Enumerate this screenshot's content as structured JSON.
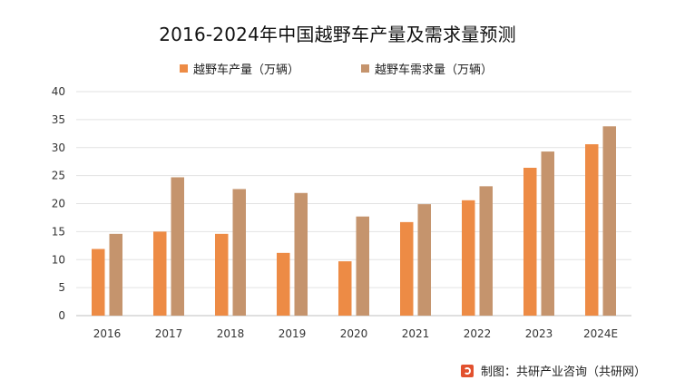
{
  "chart_data": {
    "type": "bar",
    "title": "2016-2024年中国越野车产量及需求量预测",
    "categories": [
      "2016",
      "2017",
      "2018",
      "2019",
      "2020",
      "2021",
      "2022",
      "2023",
      "2024E"
    ],
    "series": [
      {
        "name": "越野车产量（万辆）",
        "color": "#ED8B45",
        "values": [
          11.9,
          15.0,
          14.6,
          11.2,
          9.7,
          16.7,
          20.6,
          26.4,
          30.6
        ]
      },
      {
        "name": "越野车需求量（万辆）",
        "color": "#C5946D",
        "values": [
          14.6,
          24.7,
          22.6,
          21.9,
          17.7,
          19.9,
          23.1,
          29.3,
          33.8
        ]
      }
    ],
    "ylim": [
      0,
      40
    ],
    "yticks": [
      0,
      5,
      10,
      15,
      20,
      25,
      30,
      35,
      40
    ],
    "grid": true,
    "legend_position": "top-center",
    "xlabel": "",
    "ylabel": ""
  },
  "source": {
    "text": "制图：共研产业咨询（共研网）"
  }
}
